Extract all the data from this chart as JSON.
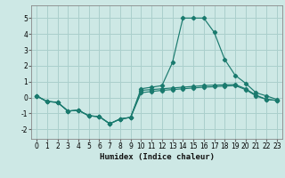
{
  "xlabel": "Humidex (Indice chaleur)",
  "background_color": "#cde8e5",
  "grid_color": "#aacfcc",
  "line_color": "#1a7a6e",
  "xlim": [
    -0.5,
    23.5
  ],
  "ylim": [
    -2.6,
    5.8
  ],
  "xticks": [
    0,
    1,
    2,
    3,
    4,
    5,
    6,
    7,
    8,
    9,
    10,
    11,
    12,
    13,
    14,
    15,
    16,
    17,
    18,
    19,
    20,
    21,
    22,
    23
  ],
  "yticks": [
    -2,
    -1,
    0,
    1,
    2,
    3,
    4,
    5
  ],
  "series": [
    [
      0.1,
      -0.25,
      -0.3,
      -0.85,
      -0.8,
      -1.15,
      -1.2,
      -1.65,
      -1.35,
      -1.25,
      0.45,
      0.5,
      0.55,
      0.6,
      0.65,
      0.7,
      0.75,
      0.78,
      0.8,
      0.82,
      0.55,
      0.15,
      -0.12,
      -0.18
    ],
    [
      0.1,
      -0.25,
      -0.3,
      -0.85,
      -0.8,
      -1.15,
      -1.2,
      -1.65,
      -1.35,
      -1.25,
      0.55,
      0.65,
      0.75,
      2.2,
      5.0,
      5.0,
      5.0,
      4.1,
      2.4,
      1.4,
      0.9,
      0.3,
      0.1,
      -0.12
    ],
    [
      0.1,
      -0.25,
      -0.3,
      -0.85,
      -0.8,
      -1.15,
      -1.2,
      -1.65,
      -1.35,
      -1.25,
      0.3,
      0.38,
      0.45,
      0.5,
      0.55,
      0.6,
      0.65,
      0.68,
      0.72,
      0.75,
      0.5,
      0.1,
      -0.12,
      -0.18
    ]
  ]
}
